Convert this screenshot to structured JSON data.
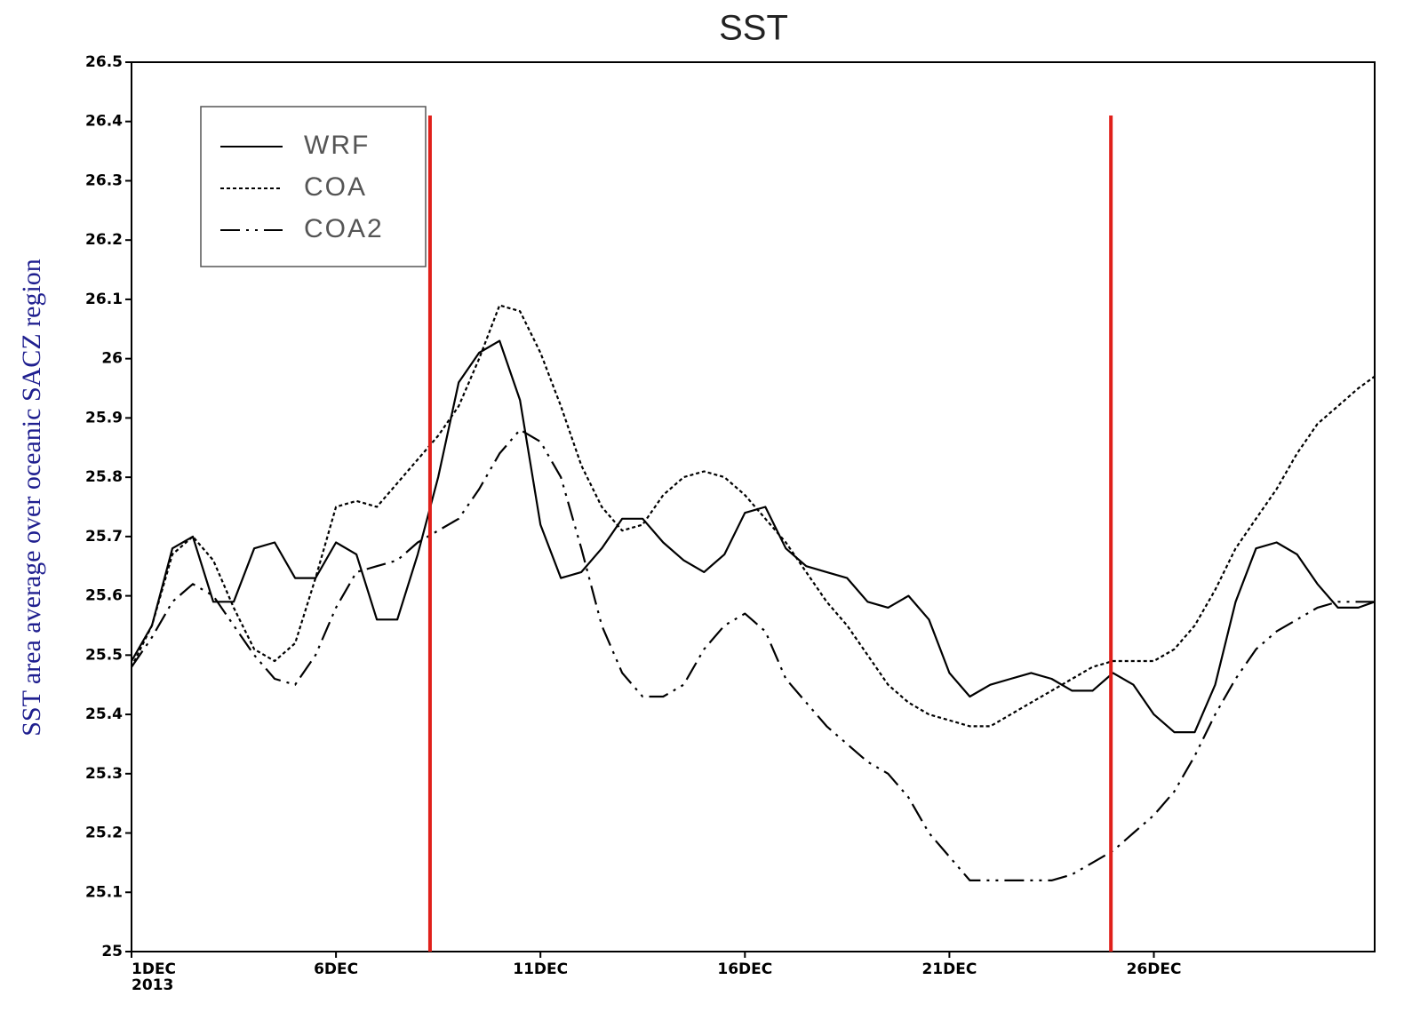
{
  "chart_data": {
    "type": "line",
    "title": "SST",
    "y_label": "SST area average over oceanic SACZ region",
    "x": [
      1,
      1.5,
      2,
      2.5,
      3,
      3.5,
      4,
      4.5,
      5,
      5.5,
      6,
      6.5,
      7,
      7.5,
      8,
      8.5,
      9,
      9.5,
      10,
      10.5,
      11,
      11.5,
      12,
      12.5,
      13,
      13.5,
      14,
      14.5,
      15,
      15.5,
      16,
      16.5,
      17,
      17.5,
      18,
      18.5,
      19,
      19.5,
      20,
      20.5,
      21,
      21.5,
      22,
      22.5,
      23,
      23.5,
      24,
      24.5,
      25,
      25.5,
      26,
      26.5,
      27,
      27.5,
      28,
      28.5,
      29,
      29.5,
      30,
      30.5,
      31,
      31.4
    ],
    "series": [
      {
        "name": "WRF",
        "color": "#000000",
        "dash": "solid",
        "values": [
          25.49,
          25.55,
          25.68,
          25.7,
          25.59,
          25.59,
          25.68,
          25.69,
          25.63,
          25.63,
          25.69,
          25.67,
          25.56,
          25.56,
          25.67,
          25.8,
          25.96,
          26.01,
          26.03,
          25.93,
          25.72,
          25.63,
          25.64,
          25.68,
          25.73,
          25.73,
          25.69,
          25.66,
          25.64,
          25.67,
          25.74,
          25.75,
          25.68,
          25.65,
          25.64,
          25.63,
          25.59,
          25.58,
          25.6,
          25.56,
          25.47,
          25.43,
          25.45,
          25.46,
          25.47,
          25.46,
          25.44,
          25.44,
          25.47,
          25.45,
          25.4,
          25.37,
          25.37,
          25.45,
          25.59,
          25.68,
          25.69,
          25.67,
          25.62,
          25.58,
          25.58,
          25.59
        ]
      },
      {
        "name": "COA",
        "color": "#000000",
        "dash": "dotted",
        "values": [
          25.48,
          25.55,
          25.67,
          25.7,
          25.66,
          25.58,
          25.51,
          25.49,
          25.52,
          25.63,
          25.75,
          25.76,
          25.75,
          25.79,
          25.83,
          25.87,
          25.92,
          26.0,
          26.09,
          26.08,
          26.01,
          25.92,
          25.82,
          25.75,
          25.71,
          25.72,
          25.77,
          25.8,
          25.81,
          25.8,
          25.77,
          25.73,
          25.69,
          25.64,
          25.59,
          25.55,
          25.5,
          25.45,
          25.42,
          25.4,
          25.39,
          25.38,
          25.38,
          25.4,
          25.42,
          25.44,
          25.46,
          25.48,
          25.49,
          25.49,
          25.49,
          25.51,
          25.55,
          25.61,
          25.68,
          25.73,
          25.78,
          25.84,
          25.89,
          25.92,
          25.95,
          25.97
        ]
      },
      {
        "name": "COA2",
        "color": "#000000",
        "dash": "dashdot",
        "values": [
          25.48,
          25.53,
          25.59,
          25.62,
          25.6,
          25.55,
          25.5,
          25.46,
          25.45,
          25.5,
          25.58,
          25.64,
          25.65,
          25.66,
          25.69,
          25.71,
          25.73,
          25.78,
          25.84,
          25.88,
          25.86,
          25.8,
          25.68,
          25.55,
          25.47,
          25.43,
          25.43,
          25.45,
          25.51,
          25.55,
          25.57,
          25.54,
          25.46,
          25.42,
          25.38,
          25.35,
          25.32,
          25.3,
          25.26,
          25.2,
          25.16,
          25.12,
          25.12,
          25.12,
          25.12,
          25.12,
          25.13,
          25.15,
          25.17,
          25.2,
          25.23,
          25.27,
          25.33,
          25.4,
          25.46,
          25.51,
          25.54,
          25.56,
          25.58,
          25.59,
          25.59,
          25.59
        ]
      }
    ],
    "xlim": [
      1,
      31.4
    ],
    "xticks": [
      {
        "value": 1,
        "label": "1DEC"
      },
      {
        "value": 6,
        "label": "6DEC"
      },
      {
        "value": 11,
        "label": "11DEC"
      },
      {
        "value": 16,
        "label": "16DEC"
      },
      {
        "value": 21,
        "label": "21DEC"
      },
      {
        "value": 26,
        "label": "26DEC"
      }
    ],
    "x_year_label": "2013",
    "ylim": [
      25,
      26.5
    ],
    "yticks": [
      25,
      25.1,
      25.2,
      25.3,
      25.4,
      25.5,
      25.6,
      25.7,
      25.8,
      25.9,
      26,
      26.1,
      26.2,
      26.3,
      26.4,
      26.5
    ],
    "reference_lines": {
      "color": "#e0201a",
      "x": [
        8.3,
        24.95
      ],
      "top": 26.41
    },
    "legend": "upper left",
    "grid": false
  }
}
